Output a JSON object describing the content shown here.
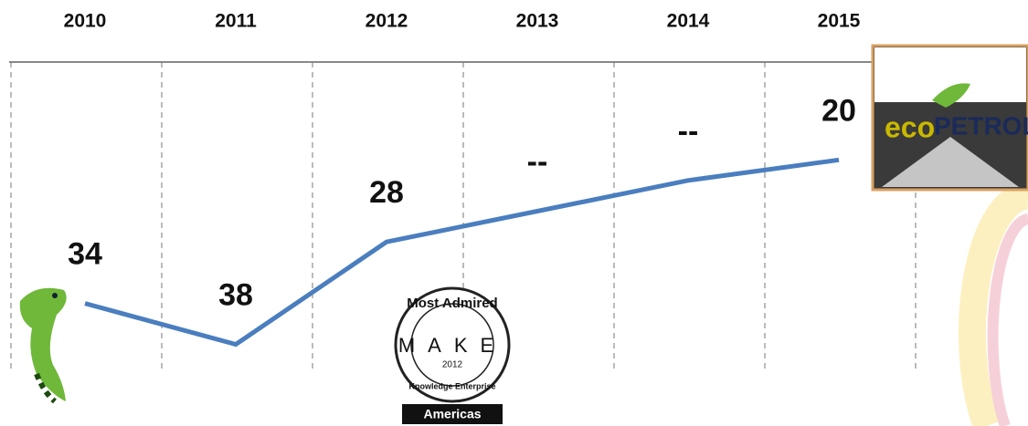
{
  "chart_data": {
    "type": "line",
    "categories": [
      "2010",
      "2011",
      "2012",
      "2013",
      "2014",
      "2015"
    ],
    "series": [
      {
        "color": "#4a7ebf",
        "values": [
          34,
          38,
          28,
          25,
          22,
          20
        ],
        "value_labels": [
          "34",
          "38",
          "28",
          "--",
          "--",
          "20"
        ]
      }
    ],
    "ylim": [
      40,
      10
    ],
    "grid": true
  },
  "badge": {
    "top": "Most Admired",
    "letters": "MAKE",
    "year": "2012",
    "bottom": "Knowledge Enterprise",
    "region": "Americas"
  },
  "logo": {
    "left": "eco",
    "right": "PETROL"
  }
}
